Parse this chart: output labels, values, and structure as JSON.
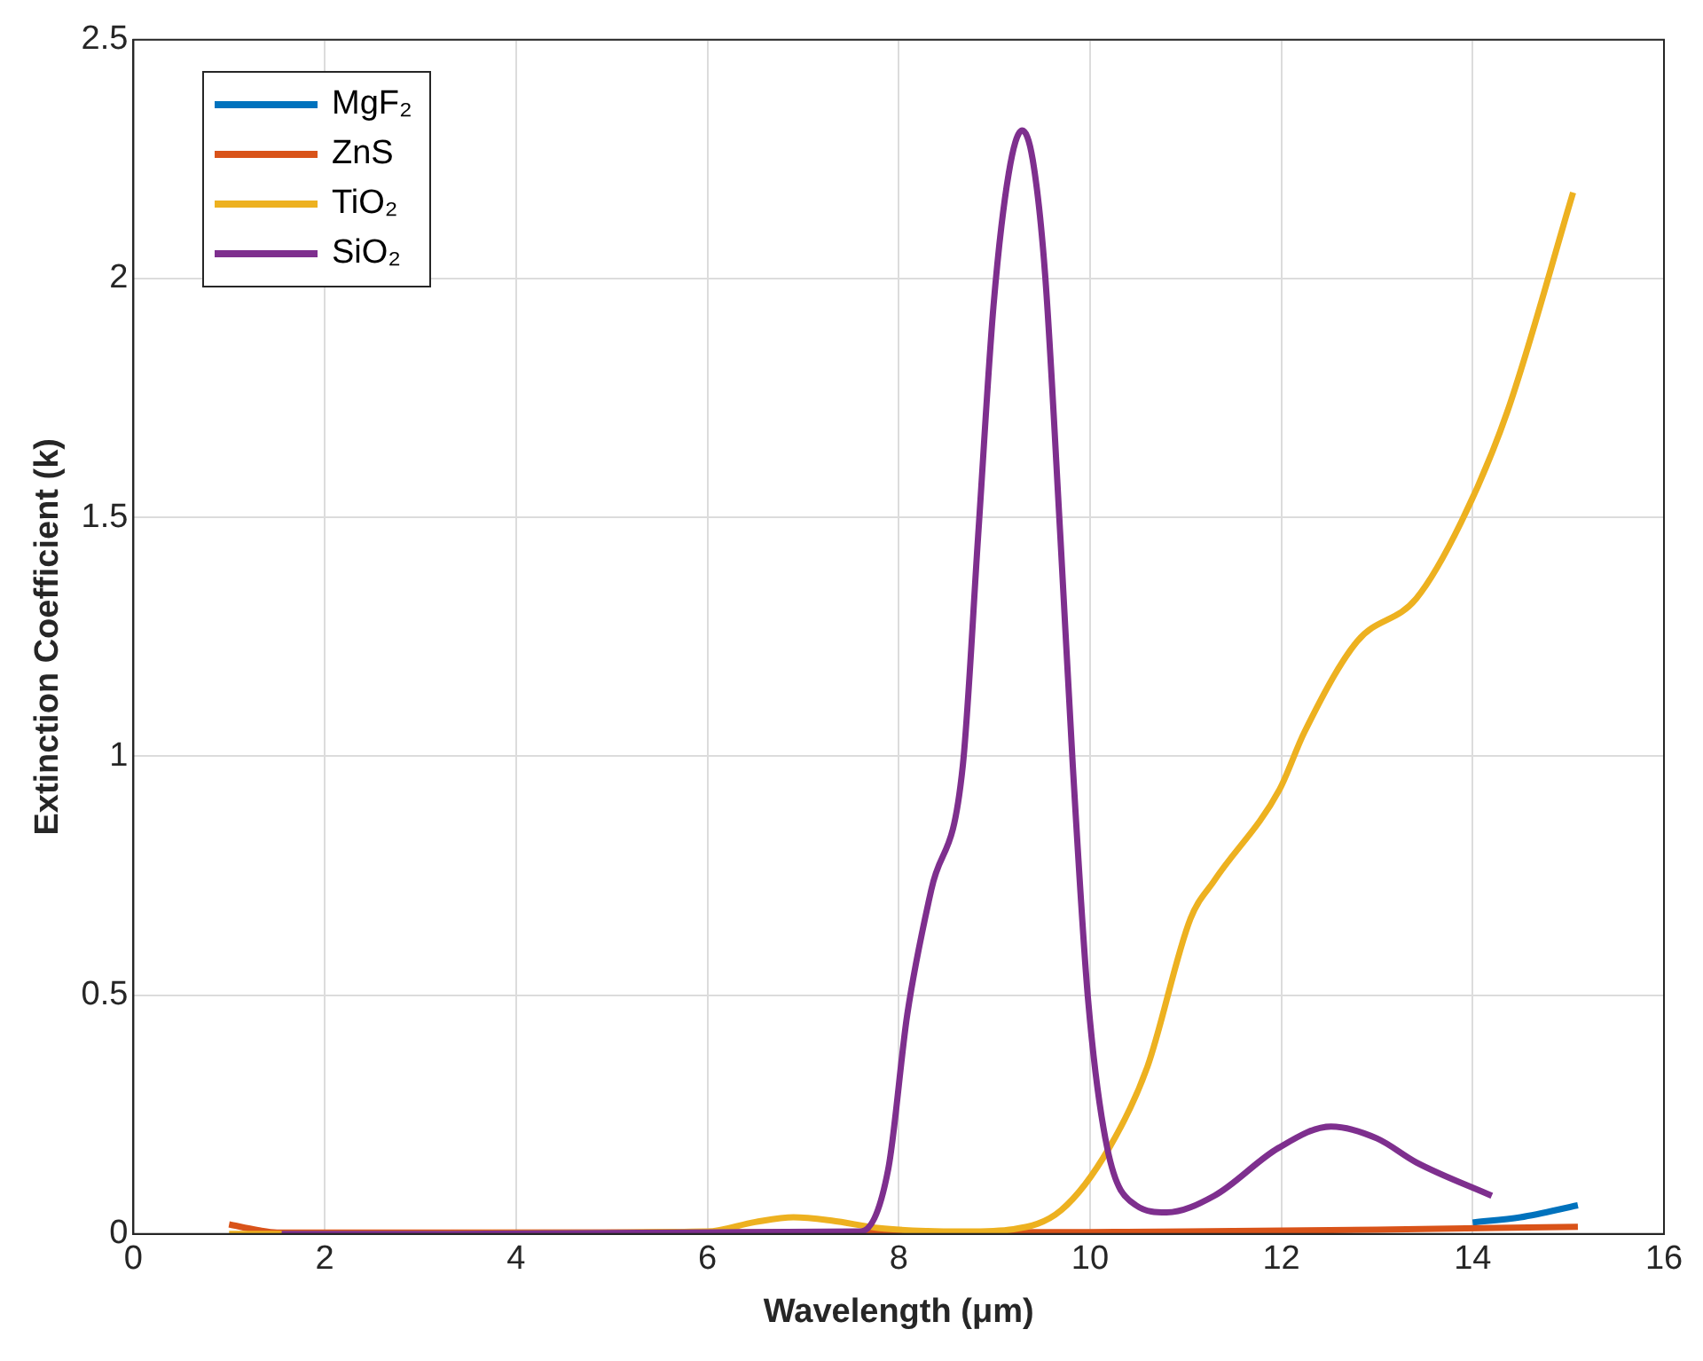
{
  "chart_data": {
    "type": "line",
    "xlabel": "Wavelength (μm)",
    "ylabel": "Extinction Coefficient (k)",
    "xlim": [
      0,
      16
    ],
    "xticks": [
      0,
      2,
      4,
      6,
      8,
      10,
      12,
      14,
      16
    ],
    "ylim": [
      0,
      2.5
    ],
    "yticks": [
      0,
      0.5,
      1,
      1.5,
      2,
      2.5
    ],
    "grid": true,
    "legend": "top left",
    "line_style": "solid",
    "marker": "none",
    "series": [
      {
        "name": "MgF₂",
        "color": "#0072bd",
        "x": [
          14,
          14.5,
          15.1
        ],
        "values": [
          0.024,
          0.035,
          0.06
        ]
      },
      {
        "name": "ZnS",
        "color": "#d95319",
        "x": [
          1,
          1.3,
          1.5,
          10,
          11,
          13,
          15.1
        ],
        "values": [
          0.02,
          0.008,
          0.003,
          0.004,
          0.005,
          0.009,
          0.015
        ]
      },
      {
        "name": "TiO₂",
        "color": "#edb120",
        "x": [
          1,
          1.5,
          6,
          6.5,
          6.9,
          7.3,
          7.8,
          8.3,
          8.7,
          9.2,
          9.7,
          10.2,
          10.6,
          11.05,
          11.3,
          11.98,
          12.24,
          12.79,
          13.41,
          13.88,
          14.36,
          15.05
        ],
        "values": [
          0,
          0,
          0.005,
          0.025,
          0.035,
          0.028,
          0.012,
          0.006,
          0.005,
          0.01,
          0.05,
          0.18,
          0.35,
          0.66,
          0.74,
          0.93,
          1.05,
          1.24,
          1.33,
          1.49,
          1.72,
          2.18
        ]
      },
      {
        "name": "SiO₂",
        "color": "#7e2f8e",
        "x": [
          1.55,
          7.6,
          7.89,
          8.09,
          8.34,
          8.67,
          8.83,
          8.99,
          9.15,
          9.29,
          9.4,
          9.53,
          9.69,
          9.82,
          9.98,
          10.18,
          10.48,
          10.8,
          11.3,
          11.97,
          12.52,
          13.0,
          13.41,
          14.2
        ],
        "values": [
          0,
          0.005,
          0.135,
          0.46,
          0.72,
          0.98,
          1.46,
          1.94,
          2.22,
          2.31,
          2.25,
          2.01,
          1.46,
          0.98,
          0.49,
          0.18,
          0.06,
          0.045,
          0.08,
          0.18,
          0.225,
          0.2,
          0.15,
          0.08
        ]
      }
    ]
  }
}
